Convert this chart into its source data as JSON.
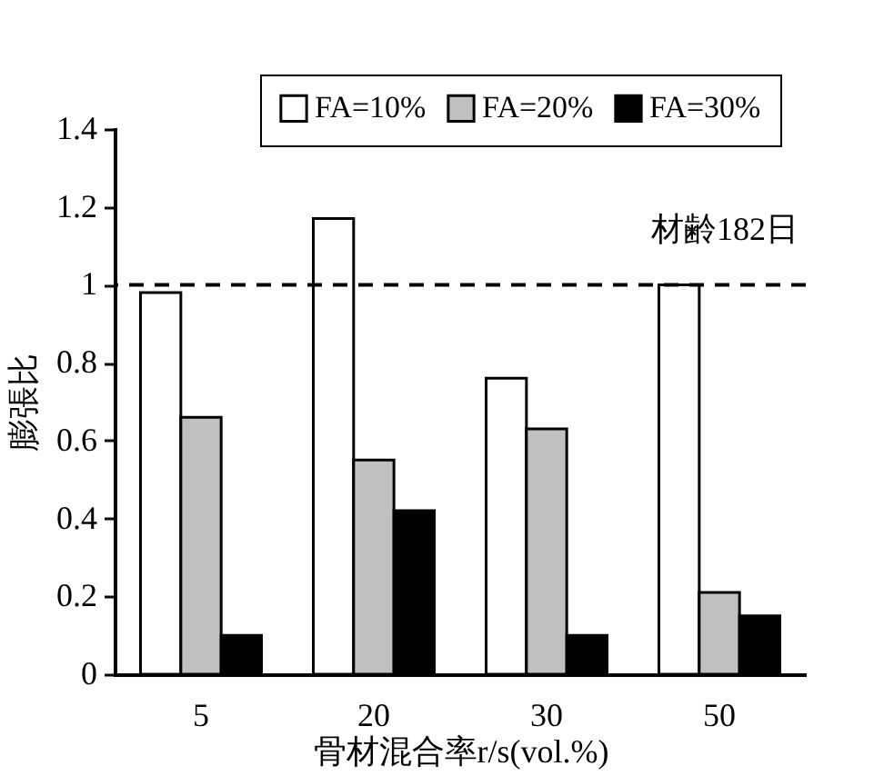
{
  "chart_data": {
    "type": "bar",
    "xlabel": "骨材混合率r/s(vol.%)",
    "ylabel": "膨張比",
    "categories": [
      "5",
      "20",
      "30",
      "50"
    ],
    "series": [
      {
        "name": "FA=10%",
        "color": "#ffffff",
        "values": [
          0.98,
          1.17,
          0.76,
          1.0
        ]
      },
      {
        "name": "FA=20%",
        "color": "#c0c0c0",
        "values": [
          0.66,
          0.55,
          0.63,
          0.21
        ]
      },
      {
        "name": "FA=30%",
        "color": "#000000",
        "values": [
          0.1,
          0.42,
          0.1,
          0.15
        ]
      }
    ],
    "ylim": [
      0,
      1.4
    ],
    "yticks": [
      0,
      0.2,
      0.4,
      0.6,
      0.8,
      1,
      1.2,
      1.4
    ],
    "ref_lines": [
      {
        "axis": "y",
        "value": 1,
        "label": null,
        "line_style": "dashed",
        "color": "#000000"
      }
    ],
    "annotations": [
      "材齢182日"
    ],
    "legend": "top right",
    "grid": false
  }
}
